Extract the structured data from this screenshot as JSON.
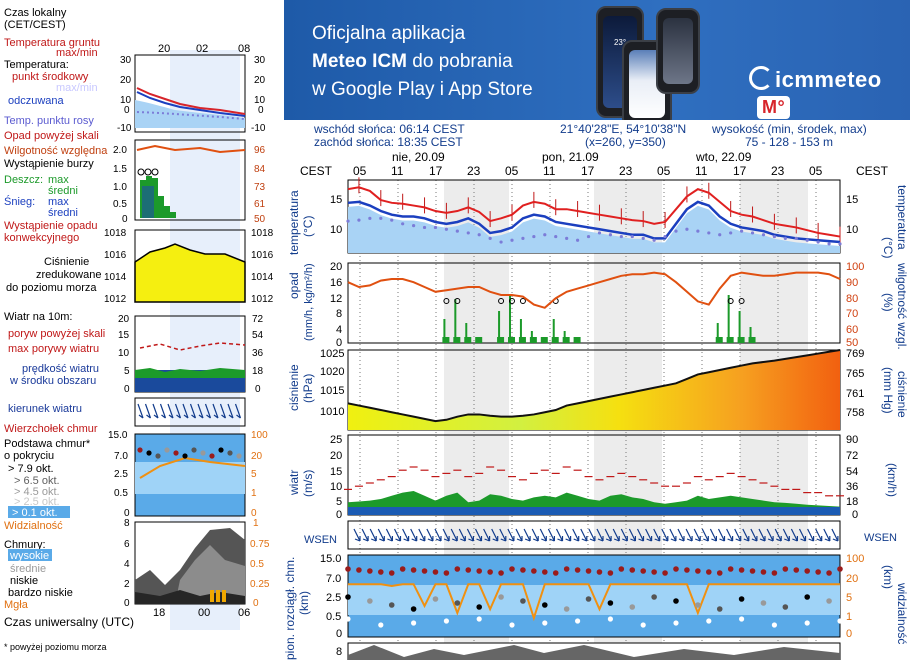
{
  "banner": {
    "line1": "Oficjalna aplikacja",
    "line2a": "Meteo ICM",
    "line2b": " do pobrania",
    "line3": "w Google Play i App Store",
    "logo_text": "icmmeteo",
    "logo_badge": "M°",
    "phone_temp": "23°"
  },
  "header": {
    "sunrise": "wschód słońca: 06:14 CEST",
    "sunset": "zachód słońca: 18:35 CEST",
    "coords": "21°40'28\"E, 54°10'38\"N",
    "grid": "(x=260,  y=350)",
    "elev_label": "wysokość (min, środek, max)",
    "elev_values": "75 - 128 - 153 m"
  },
  "legend": {
    "time_local": "Czas lokalny",
    "time_local2": "(CET/CEST)",
    "soil_temp": "Temperatura gruntu",
    "soil_maxmin": "max/min",
    "temperature": "Temperatura:",
    "mid_point": "punkt środkowy",
    "maxmin": "max/min",
    "felt": "odczuwana",
    "dew": "Temp. punktu rosy",
    "rain_above": "Opad powyżej skali",
    "humidity": "Wilgotność względna",
    "storm": "Wystąpienie burzy",
    "rain": "Deszcz:",
    "max": "max",
    "mean": "średni",
    "snow": "Śnieg:",
    "conv": "Wystąpienie opadu",
    "conv2": "konwekcyjnego",
    "pressure1": "Ciśnienie",
    "pressure2": "zredukowane",
    "pressure3": "do poziomu morza",
    "wind10": "Wiatr na 10m:",
    "gust_above": "poryw powyżej skali",
    "gust_max": "max porywy wiatru",
    "wind_speed": "prędkość wiatru",
    "wind_area": "w środku obszaru",
    "wind_dir": "kierunek wiatru",
    "cloud_top": "Wierzchołek chmur",
    "cloud_base1": "Podstawa chmur*",
    "cloud_base2": "o pokryciu",
    "okt1": "> 7.9 okt.",
    "okt2": "> 6.5 okt.",
    "okt3": "> 4.5 okt.",
    "okt4": "> 2.5 okt.",
    "okt5": "> 0.1 okt.",
    "visibility": "Widzialność",
    "clouds": "Chmury:",
    "cl_high": "wysokie",
    "cl_mid": "średnie",
    "cl_low": "niskie",
    "cl_vlow": "bardzo niskie",
    "fog": "Mgła",
    "utc": "Czas uniwersalny (UTC)",
    "footnote": "* powyżej poziomu morza"
  },
  "axes": {
    "cest": "CEST",
    "temp_label": "temperatura",
    "temp_unit": "(°C)",
    "precip_label": "opad",
    "precip_unit": "(mm/h, kg/m²/h)",
    "humid_label": "wilgotność wzgl.",
    "humid_unit": "(%)",
    "press_label": "ciśnienie",
    "press_unit": "(hPa)",
    "pressmm_unit": "(mm Hg)",
    "wind_label": "wiatr",
    "wind_unit": "(m/s)",
    "windkmh_unit": "(km/h)",
    "wind_dir_icon": "WSEN",
    "cloud_label": "pion. rozciągł. chm.",
    "cloud_unit": "(km)",
    "vis_label": "widzialność",
    "vis_unit": "(km)"
  },
  "legend_chart": {
    "top_times": [
      "20",
      "02",
      "08"
    ],
    "bottom_times": [
      "18",
      "00",
      "06"
    ],
    "temp_ticks": [
      "30",
      "20",
      "10",
      "0",
      "-10"
    ],
    "humid_ticks_left": [
      "2.0",
      "1.5",
      "1.0",
      "0.5",
      "0"
    ],
    "humid_ticks_right": [
      "96",
      "84",
      "73",
      "61",
      "50"
    ],
    "press_ticks": [
      "1018",
      "1016",
      "1014",
      "1012"
    ],
    "wind_ticks_left": [
      "20",
      "15",
      "10",
      "5",
      "0"
    ],
    "wind_ticks_right": [
      "72",
      "54",
      "36",
      "18",
      "0"
    ],
    "cloud_ticks_left": [
      "15.0",
      "7.0",
      "2.5",
      "0.5",
      "0"
    ],
    "cloud_ticks_right": [
      "100",
      "20",
      "5",
      "1",
      "0"
    ],
    "cl_ticks_left": [
      "8",
      "6",
      "4",
      "2",
      "0"
    ],
    "cl_ticks_right": [
      "1",
      "0.75",
      "0.5",
      "0.25",
      "0"
    ]
  },
  "chart_data": {
    "type": "line",
    "days": [
      "nie, 20.09",
      "pon, 21.09",
      "wto, 22.09"
    ],
    "hours": [
      "05",
      "11",
      "17",
      "23",
      "05",
      "11",
      "17",
      "23",
      "05",
      "11",
      "17",
      "23",
      "05"
    ],
    "temp_axis": [
      "15",
      "10"
    ],
    "precip_axis": [
      "20",
      "16",
      "12",
      "8",
      "4",
      "0"
    ],
    "humidity_axis": [
      "100",
      "90",
      "80",
      "70",
      "60",
      "50"
    ],
    "pressure_axis": [
      "1025",
      "1020",
      "1015",
      "1010"
    ],
    "pressure_mm_axis": [
      "769",
      "765",
      "761",
      "758"
    ],
    "wind_axis": [
      "25",
      "20",
      "15",
      "10",
      "5",
      "0"
    ],
    "wind_kmh_axis": [
      "90",
      "72",
      "54",
      "36",
      "18",
      "0"
    ],
    "cloud_axis": [
      "15.0",
      "7.0",
      "2.5",
      "0.5",
      "0"
    ],
    "vis_axis": [
      "100",
      "20",
      "5",
      "1",
      "0"
    ],
    "temperature_max": [
      15.0,
      15.2,
      14.8,
      13.8,
      13.5,
      13.4,
      13.2,
      13.0,
      12.6,
      12.4,
      12.6,
      13.0,
      12.5,
      11.5,
      11.8,
      12.2,
      13.2,
      13.6,
      13.4,
      12.8,
      12.8,
      12.6,
      12.4,
      12.2,
      12.0,
      11.8,
      11.6,
      11.5,
      11.2,
      11.4,
      12.8,
      14.2,
      15.0,
      14.6,
      13.6,
      12.6,
      12.2,
      12.0,
      11.6,
      11.2,
      11.0,
      10.8,
      10.5,
      10.2,
      10.0,
      9.8
    ],
    "temperature_mid": [
      13.5,
      13.6,
      13.2,
      12.6,
      12.2,
      12.0,
      12.0,
      11.8,
      11.4,
      11.2,
      11.4,
      11.8,
      11.2,
      10.2,
      10.4,
      10.8,
      11.8,
      12.2,
      12.0,
      11.4,
      11.2,
      11.0,
      10.8,
      10.6,
      10.4,
      10.2,
      10.0,
      10.0,
      9.6,
      9.6,
      11.2,
      12.8,
      13.6,
      13.2,
      12.0,
      11.2,
      10.8,
      10.6,
      10.4,
      10.0,
      9.8,
      9.6,
      9.5,
      9.4,
      9.3,
      9.2
    ],
    "dew_point": [
      11.5,
      11.6,
      11.8,
      11.8,
      11.6,
      11.2,
      11.0,
      10.8,
      10.8,
      10.6,
      10.4,
      10.2,
      10.0,
      9.6,
      9.2,
      9.4,
      9.6,
      9.8,
      10.0,
      9.8,
      9.6,
      9.4,
      9.8,
      10.2,
      10.0,
      9.8,
      9.8,
      9.6,
      9.4,
      9.8,
      10.4,
      10.6,
      10.4,
      10.2,
      10.0,
      10.2,
      10.4,
      10.2,
      10.0,
      9.8,
      9.6,
      9.6,
      9.4,
      9.2,
      9.0,
      9.0
    ],
    "humidity": [
      88,
      85,
      86,
      89,
      90,
      90,
      88,
      85,
      82,
      83,
      84,
      85,
      85,
      82,
      80,
      80,
      79,
      74,
      72,
      78,
      82,
      84,
      86,
      88,
      90,
      92,
      93,
      93,
      94,
      93,
      88,
      82,
      76,
      74,
      84,
      92,
      94,
      93,
      92,
      92,
      93,
      94,
      94,
      94,
      93,
      90
    ],
    "precip_max": [
      0,
      0,
      0,
      0,
      0,
      0,
      0,
      0,
      0,
      6,
      11,
      5,
      1,
      0,
      8,
      12,
      6,
      3,
      1,
      6,
      3,
      1,
      0,
      0,
      0,
      0,
      0,
      0,
      0,
      0,
      0,
      0,
      0,
      0,
      5,
      12,
      8,
      4,
      0,
      0,
      0,
      0,
      0,
      0,
      0,
      0
    ],
    "pressure": [
      1014.0,
      1013.5,
      1013.0,
      1012.5,
      1012.0,
      1011.5,
      1011.0,
      1010.5,
      1010.0,
      1010.3,
      1011.0,
      1011.5,
      1011.5,
      1011.2,
      1011.0,
      1011.0,
      1011.2,
      1011.5,
      1012.0,
      1012.5,
      1013.5,
      1014.0,
      1014.5,
      1015.0,
      1015.5,
      1016.0,
      1016.5,
      1017.0,
      1017.5,
      1018.0,
      1018.5,
      1019.5,
      1020.5,
      1021.0,
      1021.5,
      1022.0,
      1022.5,
      1023.0,
      1023.3,
      1023.6,
      1024.0,
      1024.4,
      1024.8,
      1025.2,
      1025.6,
      1026.0
    ],
    "wind_speed": [
      4.0,
      4.2,
      4.5,
      5.0,
      6.0,
      7.0,
      7.5,
      6.0,
      4.5,
      6.0,
      7.0,
      4.0,
      4.5,
      6.5,
      6.0,
      5.0,
      4.5,
      5.5,
      6.0,
      5.5,
      7.0,
      6.0,
      5.0,
      4.5,
      6.0,
      6.5,
      5.5,
      5.0,
      4.0,
      3.5,
      4.0,
      4.5,
      6.0,
      5.0,
      5.5,
      6.0,
      5.5,
      5.0,
      4.5,
      4.0,
      3.8,
      3.5,
      3.2,
      3.0,
      2.8,
      2.6
    ],
    "gust_max": [
      8,
      9,
      10,
      11,
      12,
      14,
      15,
      14,
      12,
      13,
      14,
      12,
      13,
      15,
      14,
      12,
      11,
      13,
      14,
      13,
      15,
      14,
      12,
      11,
      12,
      13,
      12,
      11,
      10,
      9,
      9,
      10,
      12,
      11,
      12,
      13,
      12,
      11,
      10,
      9,
      8,
      8,
      7,
      7,
      6,
      6
    ],
    "visibility": [
      20,
      20,
      20,
      20,
      18,
      20,
      20,
      5,
      20,
      20,
      3,
      20,
      20,
      4,
      20,
      20,
      20,
      2,
      20,
      20,
      20,
      20,
      20,
      4,
      20,
      20,
      20,
      20,
      20,
      20,
      20,
      20,
      3,
      20,
      20,
      20,
      20,
      20,
      20,
      20,
      20,
      20,
      20,
      20,
      20,
      20
    ]
  }
}
